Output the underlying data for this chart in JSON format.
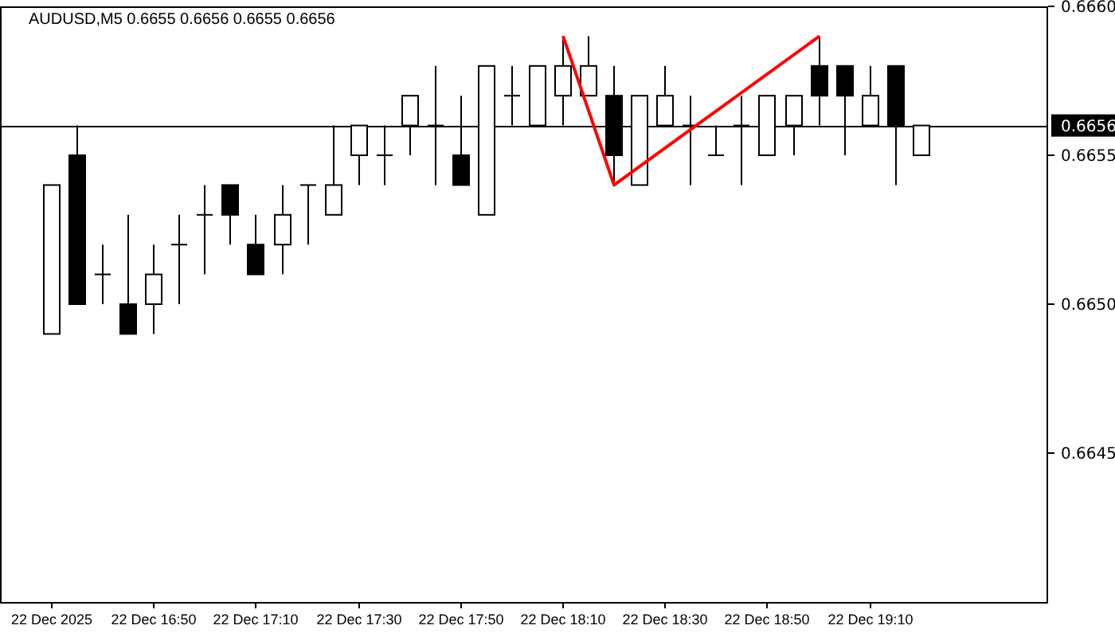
{
  "chart_data": {
    "type": "candlestick",
    "title": "AUDUSD,M5  0.6655 0.6656 0.6655 0.6656",
    "x": [
      "2025-12-22T16:30",
      "2025-12-22T16:35",
      "2025-12-22T16:40",
      "2025-12-22T16:45",
      "2025-12-22T16:50",
      "2025-12-22T16:55",
      "2025-12-22T17:00",
      "2025-12-22T17:05",
      "2025-12-22T17:10",
      "2025-12-22T17:15",
      "2025-12-22T17:20",
      "2025-12-22T17:25",
      "2025-12-22T17:30",
      "2025-12-22T17:35",
      "2025-12-22T17:40",
      "2025-12-22T17:45",
      "2025-12-22T17:50",
      "2025-12-22T17:55",
      "2025-12-22T18:00",
      "2025-12-22T18:05",
      "2025-12-22T18:10",
      "2025-12-22T18:15",
      "2025-12-22T18:20",
      "2025-12-22T18:25",
      "2025-12-22T18:30",
      "2025-12-22T18:35",
      "2025-12-22T18:40",
      "2025-12-22T18:45",
      "2025-12-22T18:50",
      "2025-12-22T18:55",
      "2025-12-22T19:00",
      "2025-12-22T19:05",
      "2025-12-22T19:10",
      "2025-12-22T19:15",
      "2025-12-22T19:20"
    ],
    "ohlc": [
      [
        0.6649,
        0.6654,
        0.6649,
        0.6654
      ],
      [
        0.6655,
        0.6656,
        0.665,
        0.665
      ],
      [
        0.6651,
        0.6652,
        0.665,
        0.6651
      ],
      [
        0.665,
        0.6653,
        0.6649,
        0.6649
      ],
      [
        0.665,
        0.6652,
        0.6649,
        0.6651
      ],
      [
        0.6652,
        0.6653,
        0.665,
        0.6652
      ],
      [
        0.6653,
        0.6654,
        0.6651,
        0.6653
      ],
      [
        0.6654,
        0.6654,
        0.6652,
        0.6653
      ],
      [
        0.6652,
        0.6653,
        0.6651,
        0.6651
      ],
      [
        0.6652,
        0.6654,
        0.6651,
        0.6653
      ],
      [
        0.6654,
        0.6654,
        0.6652,
        0.6654
      ],
      [
        0.6653,
        0.6656,
        0.6653,
        0.6654
      ],
      [
        0.6655,
        0.6656,
        0.6654,
        0.6656
      ],
      [
        0.6655,
        0.6656,
        0.6654,
        0.6655
      ],
      [
        0.6656,
        0.6657,
        0.6655,
        0.6657
      ],
      [
        0.6656,
        0.6658,
        0.6654,
        0.6656
      ],
      [
        0.6655,
        0.6657,
        0.6654,
        0.6654
      ],
      [
        0.6653,
        0.6658,
        0.6653,
        0.6658
      ],
      [
        0.6657,
        0.6658,
        0.6656,
        0.6657
      ],
      [
        0.6656,
        0.6658,
        0.6656,
        0.6658
      ],
      [
        0.6657,
        0.6659,
        0.6656,
        0.6658
      ],
      [
        0.6657,
        0.6659,
        0.6657,
        0.6658
      ],
      [
        0.6657,
        0.6658,
        0.6654,
        0.6655
      ],
      [
        0.6654,
        0.6657,
        0.6654,
        0.6657
      ],
      [
        0.6656,
        0.6658,
        0.6656,
        0.6657
      ],
      [
        0.6656,
        0.6657,
        0.6654,
        0.6656
      ],
      [
        0.6655,
        0.6656,
        0.6655,
        0.6655
      ],
      [
        0.6656,
        0.6657,
        0.6654,
        0.6656
      ],
      [
        0.6655,
        0.6657,
        0.6655,
        0.6657
      ],
      [
        0.6656,
        0.6657,
        0.6655,
        0.6657
      ],
      [
        0.6658,
        0.6659,
        0.6656,
        0.6657
      ],
      [
        0.6658,
        0.6658,
        0.6655,
        0.6657
      ],
      [
        0.6656,
        0.6658,
        0.6656,
        0.6657
      ],
      [
        0.6658,
        0.6658,
        0.6654,
        0.6656
      ],
      [
        0.6655,
        0.6656,
        0.6655,
        0.6656
      ]
    ],
    "series": [
      {
        "type": "line",
        "color": "#ff0000",
        "x": [
          "2025-12-22T18:10",
          "2025-12-22T18:20",
          "2025-12-22T19:00"
        ],
        "values": [
          0.6659,
          0.6654,
          0.6659
        ]
      }
    ],
    "xlim": [
      "2025-12-22T16:20",
      "2025-12-22T19:45"
    ],
    "xticks": [
      {
        "value": "2025-12-22T16:30",
        "label": "22 Dec 2025"
      },
      {
        "value": "2025-12-22T16:50",
        "label": "22 Dec 16:50"
      },
      {
        "value": "2025-12-22T17:10",
        "label": "22 Dec 17:10"
      },
      {
        "value": "2025-12-22T17:30",
        "label": "22 Dec 17:30"
      },
      {
        "value": "2025-12-22T17:50",
        "label": "22 Dec 17:50"
      },
      {
        "value": "2025-12-22T18:10",
        "label": "22 Dec 18:10"
      },
      {
        "value": "2025-12-22T18:30",
        "label": "22 Dec 18:30"
      },
      {
        "value": "2025-12-22T18:50",
        "label": "22 Dec 18:50"
      },
      {
        "value": "2025-12-22T19:10",
        "label": "22 Dec 19:10"
      }
    ],
    "ylim": [
      0.664,
      0.666
    ],
    "yticks": [
      {
        "value": 0.6645,
        "label": "0.6645"
      },
      {
        "value": 0.665,
        "label": "0.6650"
      },
      {
        "value": 0.6655,
        "label": "0.6655"
      },
      {
        "value": 0.666,
        "label": "0.6660"
      }
    ],
    "ref_lines": [
      {
        "axis": "y",
        "value": 0.6656,
        "label": "0.6656",
        "color": "#000000"
      }
    ]
  }
}
